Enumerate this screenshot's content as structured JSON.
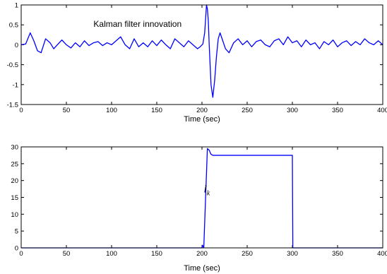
{
  "chart_data": [
    {
      "type": "line",
      "xlabel": "Time (sec)",
      "ylabel": "",
      "xlim": [
        0,
        400
      ],
      "ylim": [
        -1.5,
        1
      ],
      "xticks": [
        0,
        50,
        100,
        150,
        200,
        250,
        300,
        350,
        400
      ],
      "yticks": [
        -1.5,
        -1,
        -0.5,
        0,
        0.5,
        1
      ],
      "grid": false,
      "annotations": [
        {
          "text": "Kalman filter innovation",
          "x": 80,
          "y": 0.45
        }
      ],
      "series": [
        {
          "color": "#0000ff",
          "x": [
            0,
            5,
            10,
            14,
            18,
            22,
            27,
            32,
            36,
            40,
            45,
            50,
            55,
            60,
            65,
            70,
            75,
            80,
            85,
            90,
            95,
            100,
            105,
            110,
            115,
            120,
            125,
            130,
            135,
            140,
            145,
            150,
            155,
            160,
            165,
            170,
            175,
            180,
            185,
            190,
            195,
            198,
            201,
            203,
            205,
            206,
            207,
            208,
            209,
            210,
            212,
            214,
            216,
            218,
            220,
            223,
            226,
            230,
            235,
            240,
            245,
            250,
            255,
            260,
            265,
            270,
            275,
            280,
            285,
            290,
            295,
            300,
            305,
            310,
            315,
            320,
            325,
            330,
            335,
            340,
            345,
            350,
            355,
            360,
            365,
            370,
            375,
            380,
            385,
            390,
            395,
            400
          ],
          "values": [
            0.0,
            0.02,
            0.3,
            0.1,
            -0.15,
            -0.2,
            0.15,
            0.05,
            -0.1,
            0.0,
            0.12,
            0.0,
            -0.08,
            0.05,
            -0.05,
            0.1,
            -0.02,
            0.05,
            0.08,
            -0.02,
            0.05,
            0.0,
            0.1,
            0.2,
            0.0,
            -0.1,
            0.15,
            -0.05,
            0.05,
            -0.05,
            0.1,
            -0.02,
            0.12,
            0.0,
            -0.1,
            0.15,
            0.05,
            -0.05,
            0.1,
            0.0,
            -0.1,
            -0.05,
            0.02,
            0.3,
            1.0,
            0.9,
            0.6,
            0.0,
            -0.5,
            -1.0,
            -1.32,
            -0.9,
            -0.3,
            0.15,
            0.3,
            0.1,
            -0.1,
            -0.2,
            0.05,
            0.15,
            0.0,
            0.1,
            -0.05,
            0.08,
            0.12,
            0.0,
            -0.05,
            0.1,
            0.15,
            0.0,
            0.2,
            0.05,
            0.1,
            -0.05,
            0.12,
            0.0,
            0.05,
            -0.1,
            0.08,
            0.0,
            0.12,
            -0.05,
            0.05,
            0.1,
            -0.02,
            0.08,
            0.0,
            0.15,
            0.05,
            0.0,
            0.1,
            0.0
          ]
        }
      ]
    },
    {
      "type": "line",
      "xlabel": "Time (sec)",
      "ylabel": "",
      "xlim": [
        0,
        400
      ],
      "ylim": [
        0,
        30
      ],
      "xticks": [
        0,
        50,
        100,
        150,
        200,
        250,
        300,
        350,
        400
      ],
      "yticks": [
        0,
        5,
        10,
        15,
        20,
        25,
        30
      ],
      "grid": false,
      "annotations": [
        {
          "text": "l",
          "subscript": "k",
          "x": 202,
          "y": 16.5
        }
      ],
      "series": [
        {
          "color": "#0000ff",
          "x": [
            0,
            200,
            200.5,
            202,
            204,
            206,
            208,
            210,
            212,
            300,
            300.5,
            302,
            400
          ],
          "values": [
            0,
            0,
            0.8,
            0,
            15,
            29.5,
            29,
            27.8,
            27.5,
            27.5,
            0,
            0,
            0
          ]
        }
      ]
    }
  ]
}
